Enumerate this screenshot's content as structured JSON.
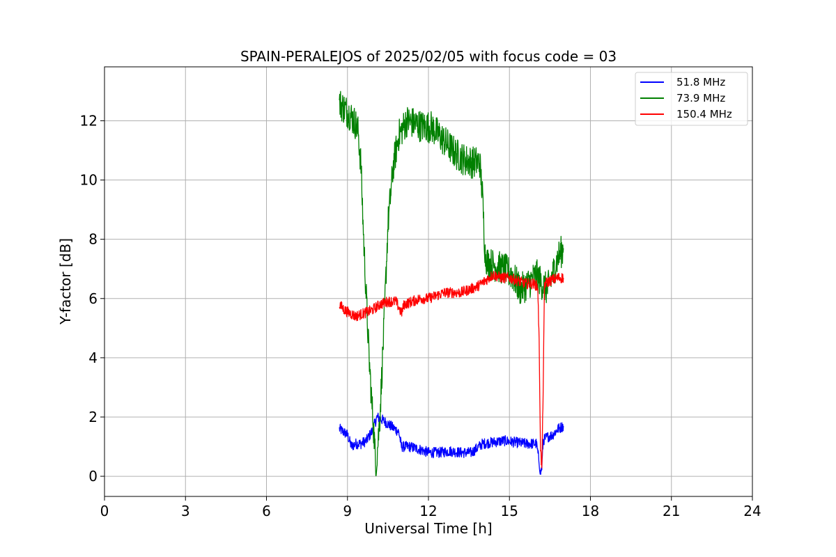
{
  "chart_data": {
    "type": "line",
    "title": "SPAIN-PERALEJOS of 2025/02/05 with focus code = 03",
    "xlabel": "Universal Time [h]",
    "ylabel": "Y-factor [dB]",
    "xlim": [
      0,
      24
    ],
    "ylim": [
      -0.68,
      13.82
    ],
    "xticks": [
      0,
      3,
      6,
      9,
      12,
      15,
      18,
      21,
      24
    ],
    "yticks": [
      0,
      2,
      4,
      6,
      8,
      10,
      12
    ],
    "grid": true,
    "legend_position": "upper right",
    "series": [
      {
        "name": "51.8 MHz",
        "color": "#0000ff",
        "noise": 0.18,
        "x": [
          8.7,
          8.85,
          9.0,
          9.15,
          9.3,
          9.5,
          9.7,
          9.9,
          10.1,
          10.3,
          10.6,
          10.9,
          11.0,
          11.3,
          11.7,
          12.0,
          12.4,
          12.8,
          13.2,
          13.6,
          14.0,
          14.4,
          14.8,
          15.2,
          15.6,
          16.0,
          16.1,
          16.15,
          16.2,
          16.25,
          16.35,
          16.6,
          16.8,
          17.0
        ],
        "y": [
          1.6,
          1.5,
          1.4,
          1.0,
          1.1,
          1.1,
          1.2,
          1.5,
          2.0,
          1.9,
          1.7,
          1.5,
          1.0,
          1.0,
          0.9,
          0.8,
          0.8,
          0.85,
          0.8,
          0.8,
          1.1,
          1.15,
          1.2,
          1.15,
          1.1,
          1.1,
          0.5,
          0.1,
          0.3,
          1.2,
          1.3,
          1.4,
          1.6,
          1.7
        ]
      },
      {
        "name": "73.9 MHz",
        "color": "#008000",
        "noise": 0.55,
        "x": [
          8.7,
          8.9,
          9.1,
          9.3,
          9.4,
          9.5,
          9.6,
          9.7,
          9.8,
          9.9,
          10.0,
          10.05,
          10.1,
          10.2,
          10.35,
          10.5,
          10.7,
          10.9,
          11.2,
          11.5,
          11.8,
          12.1,
          12.4,
          12.7,
          13.0,
          13.3,
          13.6,
          13.9,
          14.0,
          14.1,
          14.2,
          14.5,
          14.8,
          15.1,
          15.4,
          15.7,
          16.0,
          16.2,
          16.4,
          16.6,
          16.8,
          17.0
        ],
        "y": [
          12.6,
          12.4,
          12.2,
          11.9,
          11.6,
          10.5,
          8.0,
          6.0,
          4.0,
          2.5,
          1.2,
          0.2,
          0.8,
          2.0,
          5.0,
          8.5,
          10.5,
          11.5,
          12.0,
          11.9,
          11.8,
          11.8,
          11.5,
          11.2,
          10.9,
          10.7,
          10.6,
          10.6,
          9.5,
          7.5,
          7.2,
          7.1,
          7.0,
          6.8,
          6.3,
          6.5,
          6.8,
          6.5,
          6.3,
          6.8,
          7.4,
          7.7
        ]
      },
      {
        "name": "150.4 MHz",
        "color": "#ff0000",
        "noise": 0.18,
        "x": [
          8.7,
          8.9,
          9.1,
          9.3,
          9.6,
          9.9,
          10.2,
          10.5,
          10.8,
          11.0,
          11.1,
          11.4,
          11.7,
          12.0,
          12.3,
          12.6,
          12.9,
          13.2,
          13.5,
          13.8,
          14.1,
          14.4,
          14.7,
          15.0,
          15.3,
          15.6,
          15.9,
          16.05,
          16.1,
          16.15,
          16.2,
          16.25,
          16.3,
          16.5,
          16.8,
          17.0
        ],
        "y": [
          5.8,
          5.6,
          5.5,
          5.4,
          5.5,
          5.6,
          5.8,
          5.9,
          5.9,
          5.5,
          5.8,
          5.9,
          6.0,
          6.0,
          6.1,
          6.2,
          6.2,
          6.2,
          6.3,
          6.4,
          6.6,
          6.8,
          6.7,
          6.7,
          6.6,
          6.5,
          6.5,
          6.4,
          4.5,
          1.0,
          0.2,
          3.0,
          6.5,
          6.6,
          6.7,
          6.7
        ]
      }
    ]
  }
}
